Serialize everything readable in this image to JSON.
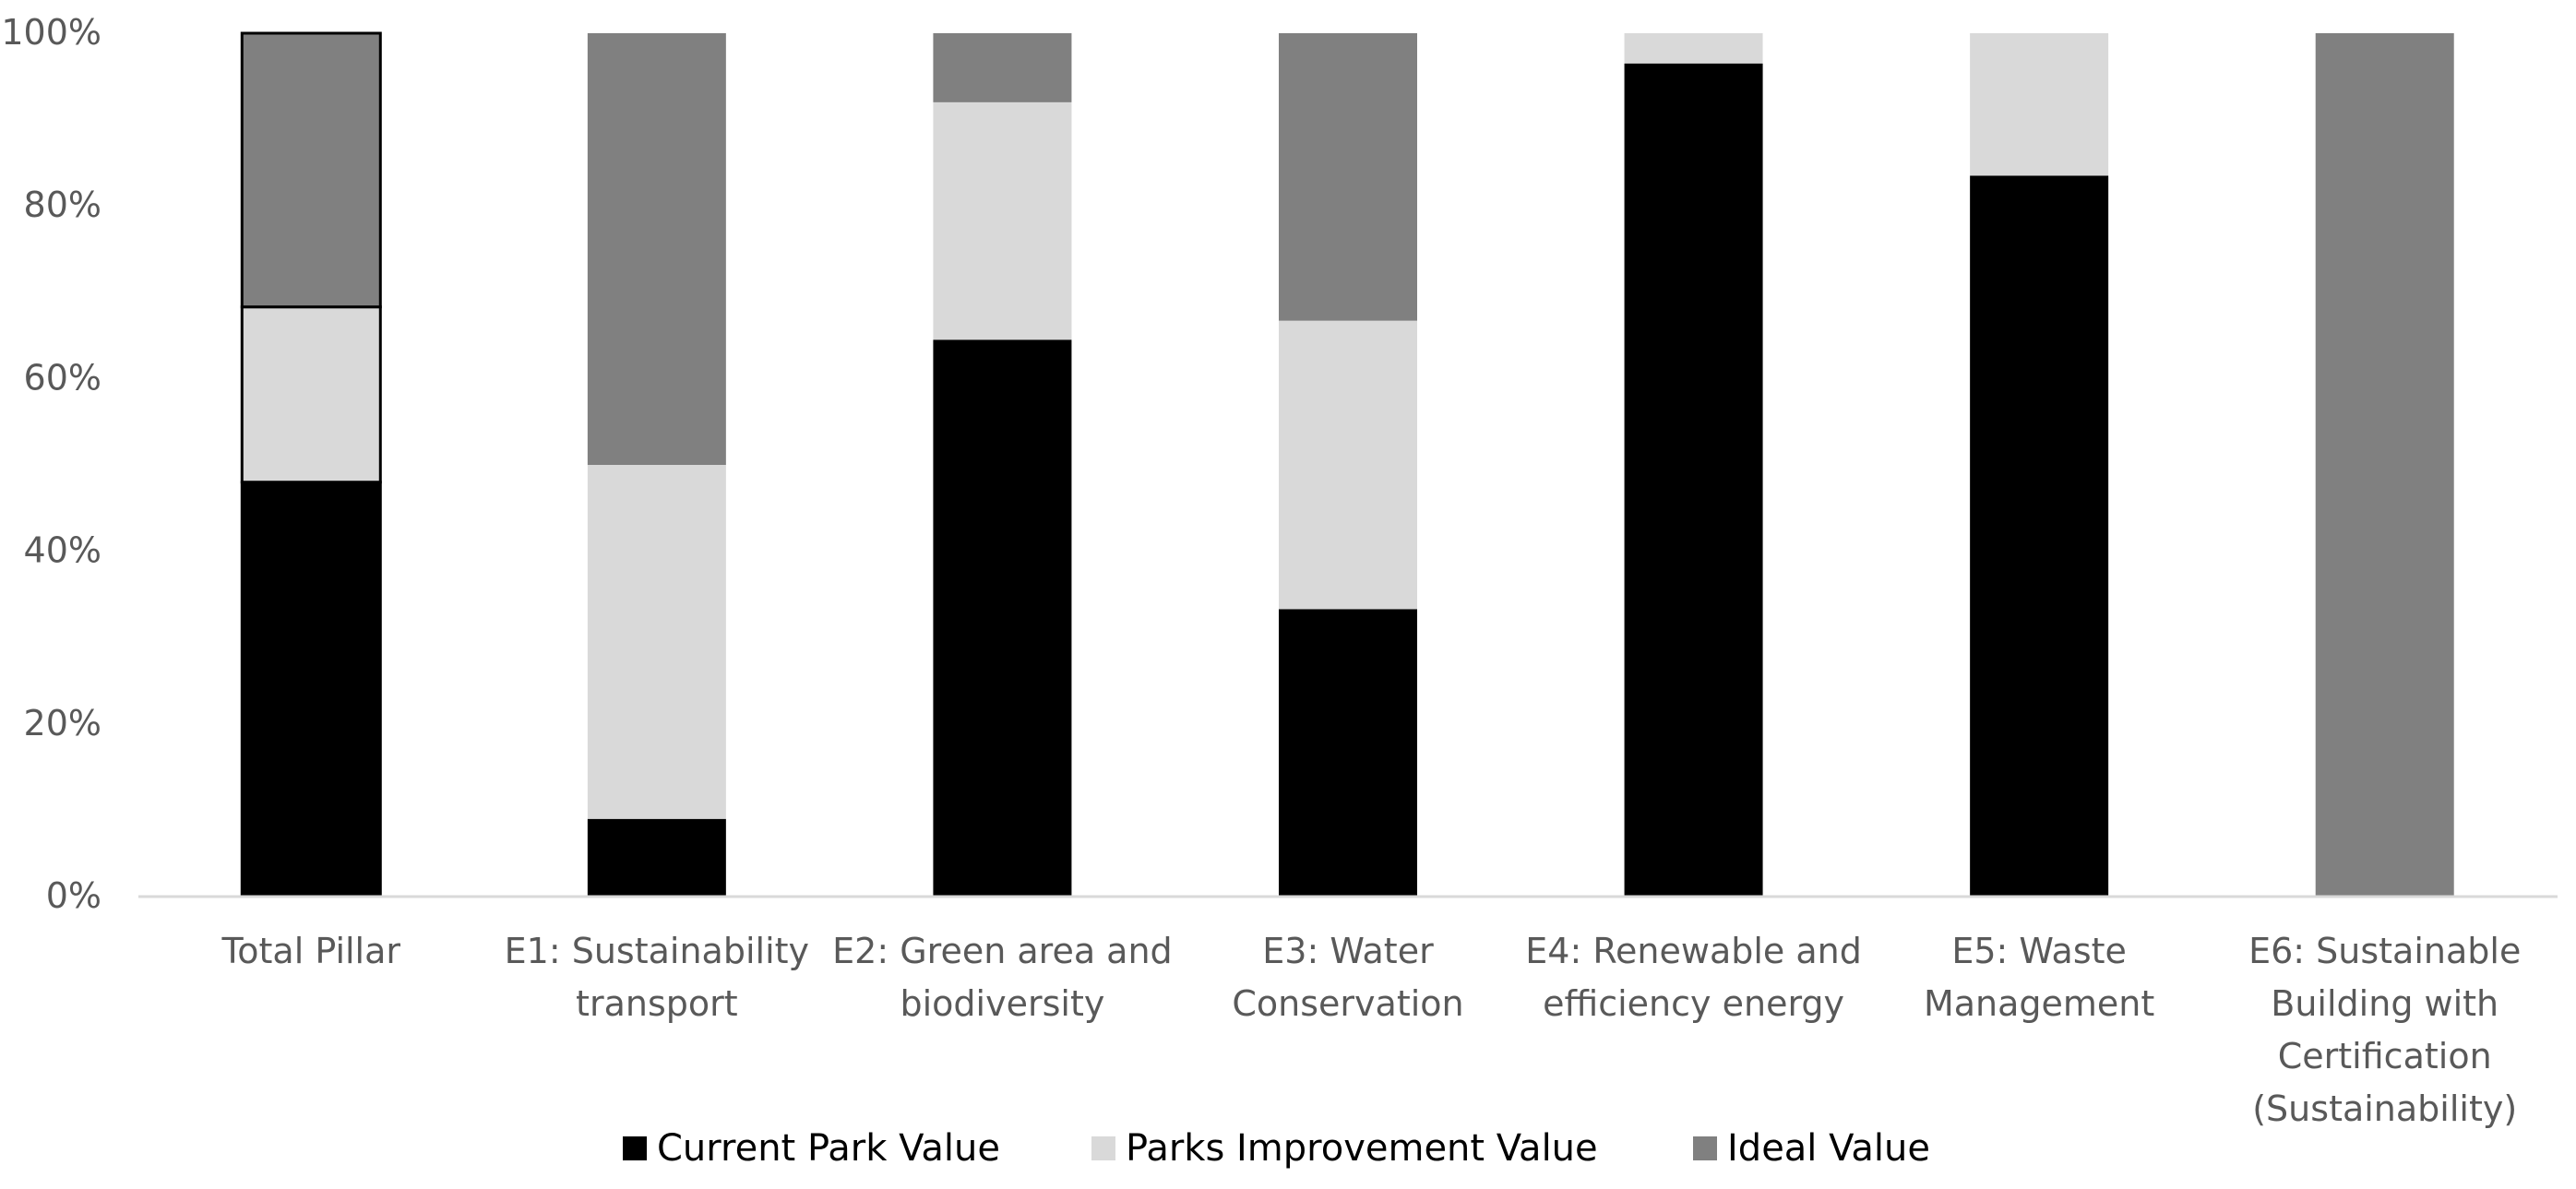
{
  "chart_data": {
    "type": "bar",
    "stacked": true,
    "categories": [
      [
        "Total Pillar"
      ],
      [
        "E1: Sustainability",
        "transport"
      ],
      [
        "E2: Green area and",
        "biodiversity"
      ],
      [
        "E3: Water",
        "Conservation"
      ],
      [
        "E4: Renewable and",
        "efficiency energy"
      ],
      [
        "E5: Waste",
        "Management"
      ],
      [
        "E6: Sustainable",
        "Building with",
        "Certification",
        "(Sustainability)"
      ]
    ],
    "series": [
      {
        "name": "Current Park Value",
        "color": "#000000",
        "values": [
          48,
          9,
          64.5,
          33.3,
          96.5,
          83.5,
          0
        ]
      },
      {
        "name": "Parks Improvement Value",
        "color": "#d9d9d9",
        "values": [
          20.3,
          41,
          27.5,
          33.4,
          3.5,
          16.5,
          0
        ]
      },
      {
        "name": "Ideal Value",
        "color": "#808080",
        "values": [
          31.7,
          50,
          8,
          33.3,
          0,
          0,
          100
        ]
      }
    ],
    "ylim": [
      0,
      100
    ],
    "yticks": [
      "0%",
      "20%",
      "40%",
      "60%",
      "80%",
      "100%"
    ],
    "ytick_values": [
      0,
      20,
      40,
      60,
      80,
      100
    ],
    "grid": false,
    "legend_position": "bottom",
    "outlined_category_index": 0
  }
}
